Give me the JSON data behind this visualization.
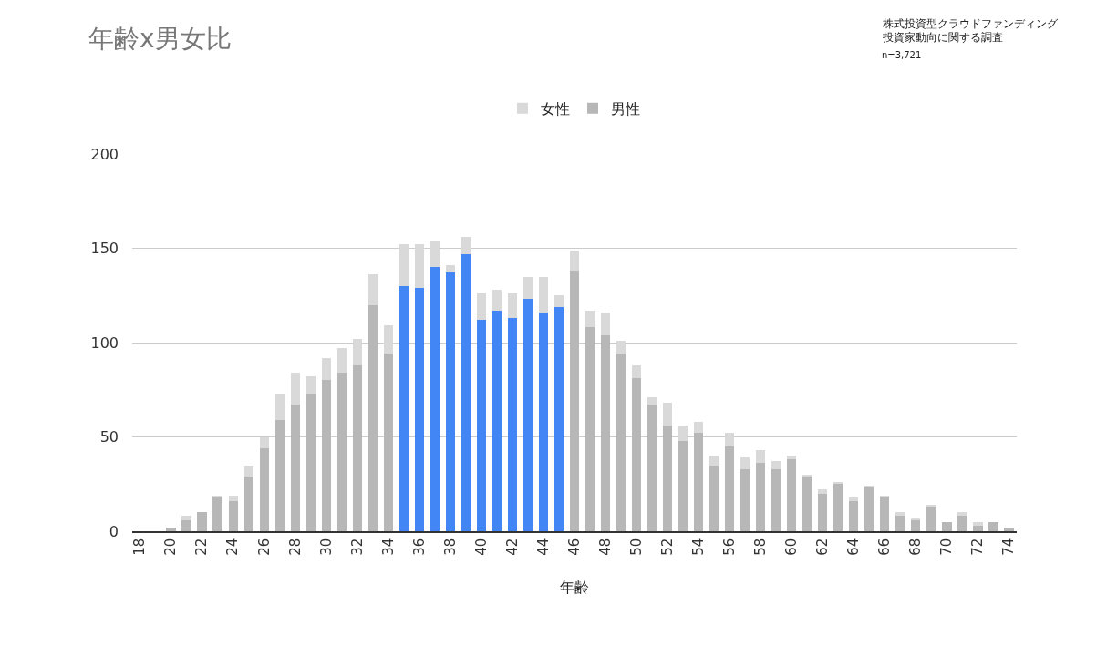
{
  "chart_data": {
    "type": "bar",
    "title": "年齢x男女比",
    "xlabel": "年齢",
    "annotations": [
      "株式投資型クラウドファンディング",
      "投資家動向に関する調査",
      "n=3,721"
    ],
    "categories": [
      "18",
      null,
      "20",
      null,
      "22",
      null,
      "24",
      null,
      "26",
      null,
      "28",
      null,
      "30",
      null,
      "32",
      null,
      "34",
      null,
      "36",
      null,
      "38",
      null,
      "40",
      null,
      "42",
      null,
      "44",
      null,
      "46",
      null,
      "48",
      null,
      "50",
      null,
      "52",
      null,
      "54",
      null,
      "56",
      null,
      "58",
      null,
      "60",
      null,
      "62",
      null,
      "64",
      null,
      "66",
      null,
      "68",
      null,
      "70",
      null,
      "72",
      null,
      "74"
    ],
    "stacked": true,
    "series": [
      {
        "name": "男性",
        "color": "#b7b7b7",
        "colors": [
          null,
          null,
          null,
          null,
          null,
          null,
          null,
          null,
          null,
          null,
          null,
          null,
          null,
          null,
          null,
          null,
          null,
          "#4285f4",
          "#4285f4",
          "#4285f4",
          "#4285f4",
          "#4285f4",
          "#4285f4",
          "#4285f4",
          "#4285f4",
          "#4285f4",
          "#4285f4",
          "#4285f4",
          null,
          null,
          null,
          null,
          null,
          null,
          null,
          null,
          null,
          null,
          null,
          null,
          null,
          null,
          null,
          null,
          null,
          null,
          null,
          null,
          null,
          null,
          null,
          null,
          null,
          null,
          null,
          null,
          null
        ],
        "values": [
          0,
          0,
          2,
          6,
          10,
          18,
          16,
          29,
          44,
          59,
          67,
          73,
          80,
          84,
          88,
          120,
          94,
          130,
          129,
          140,
          137,
          147,
          112,
          117,
          113,
          123,
          116,
          119,
          138,
          108,
          104,
          94,
          81,
          67,
          56,
          48,
          52,
          35,
          45,
          33,
          36,
          33,
          38,
          29,
          20,
          25,
          16,
          23,
          18,
          8,
          6,
          13,
          5,
          8,
          3,
          5,
          2
        ]
      },
      {
        "name": "女性",
        "color": "#d9d9d9",
        "values": [
          0,
          0,
          0,
          2,
          0,
          1,
          3,
          6,
          6,
          14,
          17,
          9,
          12,
          13,
          14,
          16,
          15,
          22,
          23,
          14,
          4,
          9,
          14,
          11,
          13,
          12,
          19,
          6,
          11,
          9,
          12,
          7,
          7,
          4,
          12,
          8,
          6,
          5,
          7,
          6,
          7,
          4,
          2,
          1,
          2,
          1,
          2,
          1,
          1,
          2,
          1,
          1,
          0,
          2,
          2,
          0,
          0
        ]
      }
    ],
    "ylim": [
      0,
      200
    ],
    "yticks": [
      0,
      50,
      100,
      150,
      200
    ],
    "grid": "y",
    "legend": "top"
  }
}
